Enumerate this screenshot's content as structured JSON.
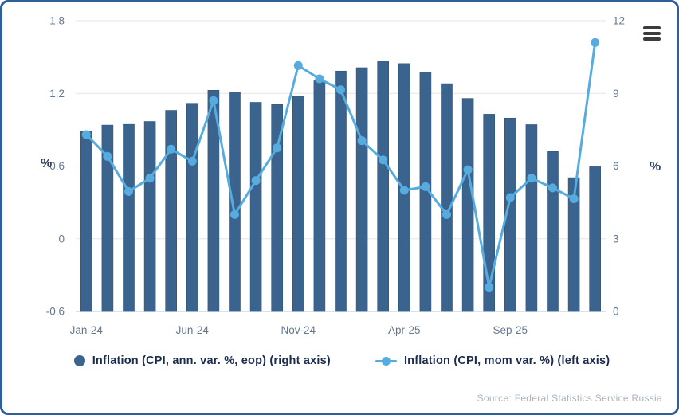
{
  "frame": {
    "border_color": "#2e5f98"
  },
  "menu": {
    "icon": "hamburger-menu"
  },
  "axes": {
    "left": {
      "label": "%",
      "tick_labels": [
        "1.8",
        "1.2",
        "0.6",
        "0",
        "-0.6"
      ]
    },
    "right": {
      "label": "%",
      "tick_labels": [
        "12",
        "9",
        "6",
        "3",
        "0"
      ]
    },
    "x": {
      "tick_labels": [
        "Jan-24",
        "Jun-24",
        "Nov-24",
        "Apr-25",
        "Sep-25"
      ],
      "tick_indices": [
        0,
        5,
        10,
        15,
        20
      ]
    }
  },
  "legend_items": [
    {
      "label": "Inflation (CPI, ann. var. %, eop) (right axis)",
      "marker": "circle",
      "color": "#3a648e"
    },
    {
      "label": "Inflation (CPI, mom var. %) (left axis)",
      "marker": "line-dot",
      "color": "#56abdf"
    }
  ],
  "source": "Source: Federal Statistics Service Russia",
  "colors": {
    "bar": "#3a648e",
    "bar_edge": "#2f5478",
    "line": "#56abdf",
    "grid": "#e6e6e6",
    "baseline": "#d9e1ec",
    "tick_text": "#64788f"
  },
  "chart_data": {
    "type": "bar+line",
    "title": "",
    "categories": [
      "Jan-24",
      "Feb-24",
      "Mar-24",
      "Apr-24",
      "May-24",
      "Jun-24",
      "Jul-24",
      "Aug-24",
      "Sep-24",
      "Oct-24",
      "Nov-24",
      "Dec-24",
      "Jan-25",
      "Feb-25",
      "Mar-25",
      "Apr-25",
      "May-25",
      "Jun-25",
      "Jul-25",
      "Aug-25",
      "Sep-25",
      "Oct-25",
      "Nov-25",
      "Dec-25",
      "Jan-26"
    ],
    "series": [
      {
        "name": "Inflation (CPI, ann. var. %, eop) (right axis)",
        "type": "bar",
        "axis": "right",
        "color": "#3a648e",
        "values": [
          7.44,
          7.69,
          7.72,
          7.84,
          8.3,
          8.59,
          9.13,
          9.05,
          8.63,
          8.54,
          8.88,
          9.52,
          9.92,
          10.06,
          10.34,
          10.23,
          9.88,
          9.4,
          8.79,
          8.14,
          7.98,
          7.71,
          6.6,
          5.52,
          5.97
        ]
      },
      {
        "name": "Inflation (CPI, mom var. %) (left axis)",
        "type": "line",
        "axis": "left",
        "color": "#56abdf",
        "values": [
          0.86,
          0.68,
          0.39,
          0.5,
          0.74,
          0.64,
          1.14,
          0.2,
          0.48,
          0.75,
          1.43,
          1.32,
          1.23,
          0.81,
          0.65,
          0.4,
          0.43,
          0.2,
          0.57,
          -0.4,
          0.34,
          0.5,
          0.42,
          0.33,
          1.62
        ]
      }
    ],
    "left_axis": {
      "label": "%",
      "min": -0.6,
      "max": 1.8,
      "ticks": [
        1.8,
        1.2,
        0.6,
        0,
        -0.6
      ]
    },
    "right_axis": {
      "label": "%",
      "min": 0,
      "max": 12,
      "ticks": [
        12,
        9,
        6,
        3,
        0
      ]
    },
    "grid": true,
    "legend_position": "bottom"
  }
}
